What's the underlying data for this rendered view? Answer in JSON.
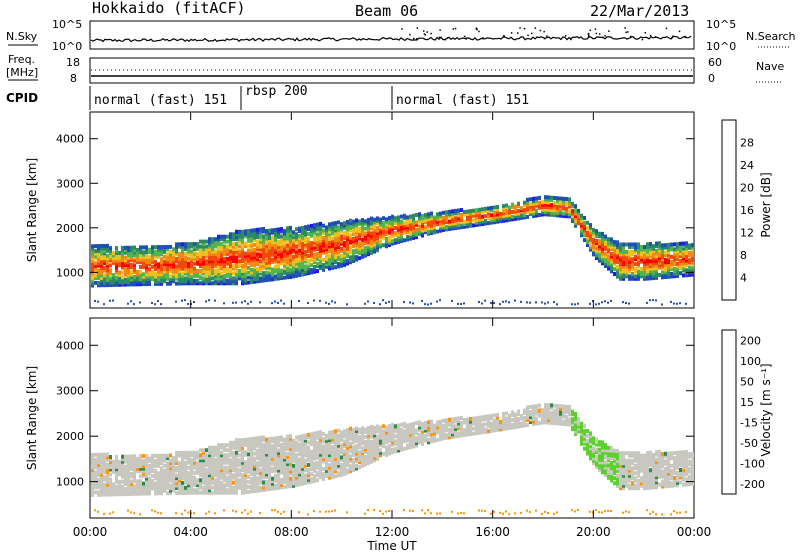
{
  "header": {
    "title": "Hokkaido (fitACF)",
    "beam": "Beam 06",
    "date": "22/Mar/2013"
  },
  "params_panel": {
    "nsky_label": "N.Sky",
    "nsky_ticks": [
      "10^5",
      "10^0"
    ],
    "nsearch_label": "N.Search",
    "nsearch_ticks": [
      "10^5",
      "10^0"
    ],
    "freq_label": "Freq.",
    "freq_unit": "[MHz]",
    "freq_ticks": [
      "18",
      "8"
    ],
    "nave_label": "Nave",
    "nave_ticks": [
      "60",
      "0"
    ],
    "cpid_label": "CPID"
  },
  "cpid_segments": [
    {
      "label": "normal (fast) 151",
      "start_hour": 0,
      "end_hour": 6
    },
    {
      "label": "rbsp 200",
      "start_hour": 6,
      "end_hour": 12
    },
    {
      "label": "normal (fast) 151",
      "start_hour": 12,
      "end_hour": 24
    }
  ],
  "colors": {
    "power": [
      "#1e1ee6",
      "#2050b4",
      "#2e8a66",
      "#52b44e",
      "#f0c020",
      "#f08a14",
      "#f04a0c",
      "#ff0000"
    ],
    "velocity": [
      "#ff0000",
      "#f04818",
      "#ff9400",
      "#f0b820",
      "#c8c8c0",
      "#5cd02c",
      "#2c8c4c",
      "#1818b0"
    ]
  },
  "chart_data": [
    {
      "type": "heatmap",
      "name": "power",
      "ylabel": "Slant Range [km]",
      "y_ticks": [
        1000,
        2000,
        3000,
        4000
      ],
      "ylim": [
        200,
        4600
      ],
      "colorbar_label": "Power [dB]",
      "colorbar_ticks": [
        "4",
        "8",
        "12",
        "16",
        "20",
        "24",
        "28"
      ],
      "echo_band": {
        "hours": [
          0,
          2,
          4,
          6,
          8,
          10,
          12,
          14,
          16,
          18,
          19,
          20,
          21,
          22,
          24
        ],
        "center_km": [
          1200,
          1200,
          1250,
          1400,
          1500,
          1700,
          2000,
          2200,
          2350,
          2550,
          2500,
          1700,
          1300,
          1300,
          1350
        ],
        "width_km": [
          450,
          420,
          450,
          600,
          550,
          500,
          300,
          200,
          180,
          200,
          200,
          300,
          400,
          400,
          350
        ]
      }
    },
    {
      "type": "heatmap",
      "name": "velocity",
      "ylabel": "Slant Range [km]",
      "xlabel": "Time UT",
      "y_ticks": [
        1000,
        2000,
        3000,
        4000
      ],
      "ylim": [
        200,
        4600
      ],
      "x_ticks": [
        "00:00",
        "04:00",
        "08:00",
        "12:00",
        "16:00",
        "20:00",
        "00:00"
      ],
      "xlim": [
        0,
        24
      ],
      "colorbar_label": "Velocity [m s⁻¹]",
      "colorbar_ticks": [
        "200",
        "100",
        "50",
        "15",
        "-15",
        "-50",
        "-100",
        "-200"
      ]
    }
  ]
}
